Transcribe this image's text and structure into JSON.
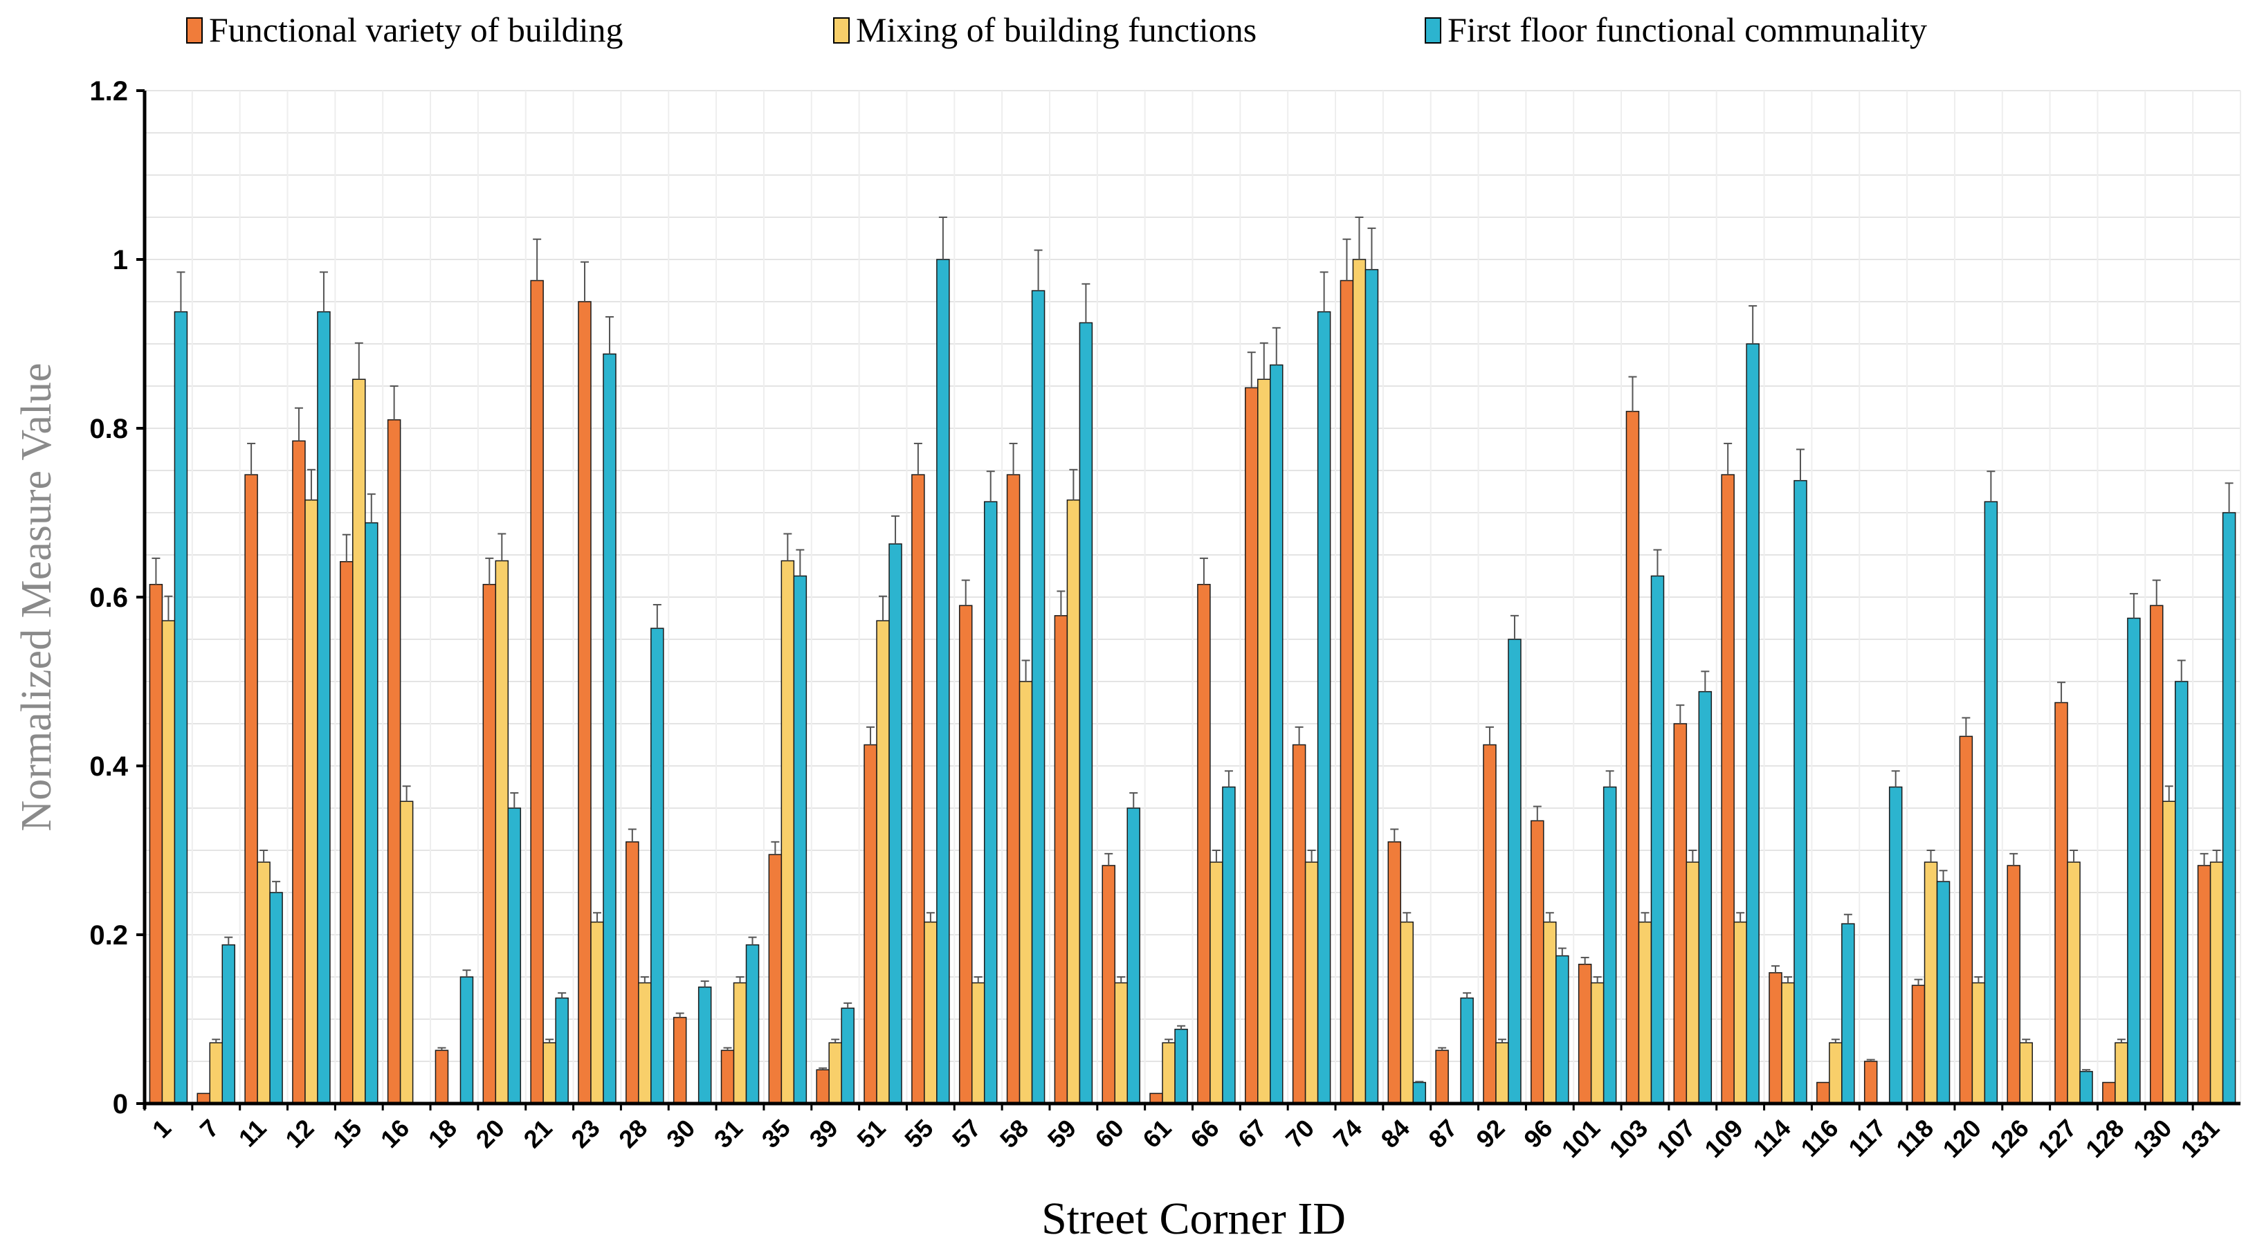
{
  "chart_data": {
    "type": "bar",
    "xlabel": "Street Corner ID",
    "ylabel": "Normalized Measure Value",
    "ylim": [
      0,
      1.2
    ],
    "yticks": [
      0,
      0.2,
      0.4,
      0.6,
      0.8,
      1,
      1.2
    ],
    "ytick_labels": [
      "0",
      "0.2",
      "0.4",
      "0.6",
      "0.8",
      "1",
      "1.2"
    ],
    "grid": true,
    "legend_position": "top",
    "error_bars": true,
    "categories": [
      "1",
      "7",
      "11",
      "12",
      "15",
      "16",
      "18",
      "20",
      "21",
      "23",
      "28",
      "30",
      "31",
      "35",
      "39",
      "51",
      "55",
      "57",
      "58",
      "59",
      "60",
      "61",
      "66",
      "67",
      "70",
      "74",
      "84",
      "87",
      "92",
      "96",
      "101",
      "103",
      "107",
      "109",
      "114",
      "116",
      "117",
      "118",
      "120",
      "126",
      "127",
      "128",
      "130",
      "131"
    ],
    "series": [
      {
        "name": "Functional variety of building",
        "color": "#F07C3A",
        "values": [
          0.615,
          0.012,
          0.745,
          0.785,
          0.642,
          0.81,
          0.063,
          0.615,
          0.975,
          0.95,
          0.31,
          0.102,
          0.063,
          0.295,
          0.04,
          0.425,
          0.745,
          0.59,
          0.745,
          0.578,
          0.282,
          0.012,
          0.615,
          0.848,
          0.425,
          0.975,
          0.31,
          0.063,
          0.425,
          0.335,
          0.165,
          0.82,
          0.45,
          0.745,
          0.155,
          0.025,
          0.05,
          0.14,
          0.435,
          0.282,
          0.475,
          0.025,
          0.59,
          0.282
        ],
        "errors": [
          0.031,
          0,
          0.037,
          0.039,
          0.032,
          0.04,
          0.003,
          0.031,
          0.049,
          0.047,
          0.015,
          0.005,
          0.003,
          0.015,
          0.002,
          0.021,
          0.037,
          0.03,
          0.037,
          0.029,
          0.014,
          0,
          0.031,
          0.042,
          0.021,
          0.049,
          0.015,
          0.003,
          0.021,
          0.017,
          0.008,
          0.041,
          0.022,
          0.037,
          0.008,
          0,
          0.002,
          0.007,
          0.022,
          0.014,
          0.024,
          0,
          0.03,
          0.014
        ]
      },
      {
        "name": "Mixing of building functions",
        "color": "#F8CF6A",
        "values": [
          0.572,
          0.072,
          0.286,
          0.715,
          0.858,
          0.358,
          0,
          0.643,
          0.072,
          0.215,
          0.143,
          0,
          0.143,
          0.643,
          0.072,
          0.572,
          0.215,
          0.143,
          0.5,
          0.715,
          0.143,
          0.072,
          0.286,
          0.858,
          0.286,
          1.0,
          0.215,
          0,
          0.072,
          0.215,
          0.143,
          0.215,
          0.286,
          0.215,
          0.143,
          0.072,
          0,
          0.286,
          0.143,
          0.072,
          0.286,
          0.072,
          0.358,
          0.286
        ],
        "errors": [
          0.029,
          0.004,
          0.014,
          0.036,
          0.043,
          0.018,
          0,
          0.032,
          0.004,
          0.011,
          0.007,
          0,
          0.007,
          0.032,
          0.004,
          0.029,
          0.011,
          0.007,
          0.025,
          0.036,
          0.007,
          0.004,
          0.014,
          0.043,
          0.014,
          0.05,
          0.011,
          0,
          0.004,
          0.011,
          0.007,
          0.011,
          0.014,
          0.011,
          0.007,
          0.004,
          0,
          0.014,
          0.007,
          0.004,
          0.014,
          0.004,
          0.018,
          0.014
        ]
      },
      {
        "name": "First floor functional communality",
        "color": "#2CB4CF",
        "values": [
          0.938,
          0.188,
          0.25,
          0.938,
          0.688,
          0,
          0.15,
          0.35,
          0.125,
          0.888,
          0.563,
          0.138,
          0.188,
          0.625,
          0.113,
          0.663,
          1.0,
          0.713,
          0.963,
          0.925,
          0.35,
          0.088,
          0.375,
          0.875,
          0.938,
          0.988,
          0.025,
          0.125,
          0.55,
          0.175,
          0.375,
          0.625,
          0.488,
          0.9,
          0.738,
          0.213,
          0.375,
          0.263,
          0.713,
          0,
          0.038,
          0.575,
          0.5,
          0.7
        ],
        "errors": [
          0.047,
          0.009,
          0.013,
          0.047,
          0.034,
          0,
          0.008,
          0.018,
          0.006,
          0.044,
          0.028,
          0.007,
          0.009,
          0.031,
          0.006,
          0.033,
          0.05,
          0.036,
          0.048,
          0.046,
          0.018,
          0.004,
          0.019,
          0.044,
          0.047,
          0.049,
          0.001,
          0.006,
          0.028,
          0.009,
          0.019,
          0.031,
          0.024,
          0.045,
          0.037,
          0.011,
          0.019,
          0.013,
          0.036,
          0,
          0.002,
          0.029,
          0.025,
          0.035
        ]
      }
    ]
  }
}
